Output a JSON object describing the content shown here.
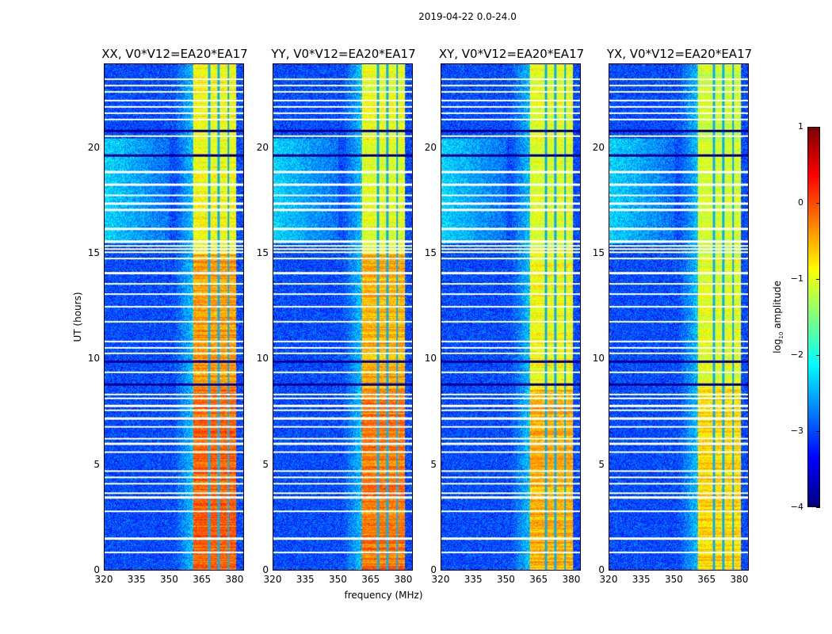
{
  "chart_data": {
    "type": "heatmap",
    "suptitle": "2019-04-22 0.0-24.0",
    "xlabel": "frequency (MHz)",
    "ylabel": "UT (hours)",
    "xlim": [
      320,
      384.4
    ],
    "ylim": [
      0,
      24
    ],
    "xticks": [
      "320",
      "335",
      "350",
      "365",
      "380"
    ],
    "xtick_values": [
      320,
      335,
      350,
      365,
      380
    ],
    "yticks": [
      "0",
      "5",
      "10",
      "15",
      "20"
    ],
    "ytick_values": [
      0,
      5,
      10,
      15,
      20
    ],
    "panels": [
      {
        "title": "XX, V0*V12=EA20*EA17",
        "band_level": [
          -0.1,
          -0.4,
          -0.9
        ]
      },
      {
        "title": "YY, V0*V12=EA20*EA17",
        "band_level": [
          -0.2,
          -0.5,
          -1.0
        ]
      },
      {
        "title": "XY, V0*V12=EA20*EA17",
        "band_level": [
          -0.5,
          -0.9,
          -1.0
        ]
      },
      {
        "title": "YX, V0*V12=EA20*EA17",
        "band_level": [
          -0.7,
          -1.0,
          -1.1
        ]
      }
    ],
    "rfi_band_mhz": [
      361,
      381
    ],
    "rfi_gaps_mhz": [
      368.3,
      372.8,
      377.3
    ],
    "background_log10": -3.0,
    "flagged_hours": [
      0.85,
      1.5,
      2.8,
      3.45,
      3.65,
      4.1,
      4.4,
      4.7,
      5.6,
      6.0,
      6.25,
      6.8,
      7.2,
      7.6,
      7.8,
      8.15,
      8.35,
      9.4,
      10.3,
      10.55,
      10.85,
      11.8,
      12.5,
      13.1,
      13.6,
      14.1,
      14.8,
      15.1,
      15.25,
      15.4,
      15.6,
      16.2,
      17.1,
      17.4,
      17.8,
      18.3,
      18.9,
      20.6,
      21.4,
      21.7,
      22.0,
      22.3,
      22.7,
      23.0,
      23.3
    ],
    "dark_hours": [
      8.8,
      9.9,
      19.7,
      20.85
    ],
    "colorbar": {
      "label": "log10 amplitude",
      "range": [
        -4,
        1
      ],
      "ticks": [
        "1",
        "0",
        "−1",
        "−2",
        "−3",
        "−4"
      ],
      "tick_values": [
        1,
        0,
        -1,
        -2,
        -3,
        -4
      ],
      "colormap": "jet"
    }
  }
}
